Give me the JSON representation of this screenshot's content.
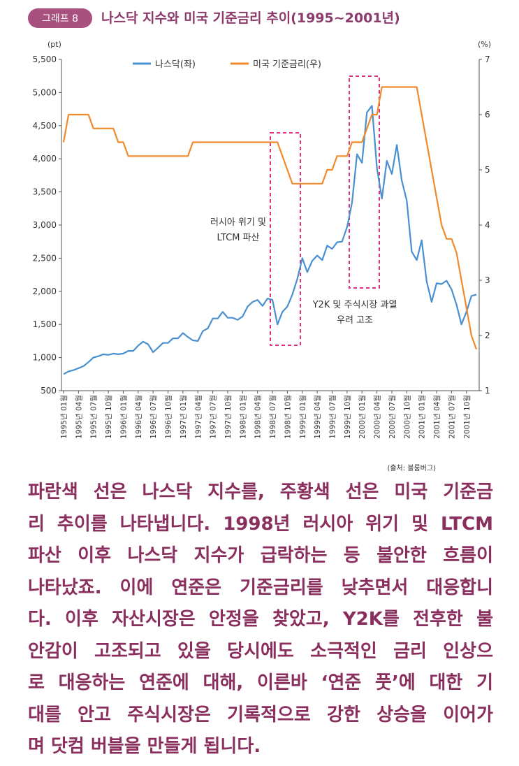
{
  "header": {
    "badge": "그래프 8",
    "title": "나스닥 지수와 미국 기준금리 추이(1995~2001년)"
  },
  "chart_data": {
    "type": "line",
    "y_unit": "(pt)",
    "y2_unit": "(%)",
    "categories": [
      "1995년 01월",
      null,
      null,
      "1995년 04월",
      null,
      null,
      "1995년 07월",
      null,
      null,
      "1995년 10월",
      null,
      null,
      "1996년 01월",
      null,
      null,
      "1996년 04월",
      null,
      null,
      "1996년 07월",
      null,
      null,
      "1996년 10월",
      null,
      null,
      "1997년 01월",
      null,
      null,
      "1997년 04월",
      null,
      null,
      "1997년 07월",
      null,
      null,
      "1997년 10월",
      null,
      null,
      "1998년 01월",
      null,
      null,
      "1998년 04월",
      null,
      null,
      "1998년 07월",
      null,
      null,
      "1998년 10월",
      null,
      null,
      "1999년 01월",
      null,
      null,
      "1999년 04월",
      null,
      null,
      "1999년 07월",
      null,
      null,
      "1999년 10월",
      null,
      null,
      "2000년 01월",
      null,
      null,
      "2000년 04월",
      null,
      null,
      "2000년 07월",
      null,
      null,
      "2000년 10월",
      null,
      null,
      "2001년 01월",
      null,
      null,
      "2001년 04월",
      null,
      null,
      "2001년 07월",
      null,
      null,
      "2001년 10월",
      null,
      null
    ],
    "series": [
      {
        "name": "나스닥(좌)",
        "color": "#4a90d0",
        "axis": "y",
        "values": [
          750,
          790,
          810,
          840,
          870,
          930,
          1000,
          1020,
          1050,
          1040,
          1060,
          1050,
          1060,
          1100,
          1100,
          1180,
          1240,
          1200,
          1080,
          1150,
          1220,
          1220,
          1290,
          1290,
          1370,
          1310,
          1260,
          1250,
          1400,
          1440,
          1590,
          1590,
          1690,
          1600,
          1600,
          1570,
          1620,
          1770,
          1840,
          1870,
          1780,
          1890,
          1870,
          1500,
          1690,
          1770,
          1950,
          2190,
          2500,
          2290,
          2460,
          2540,
          2470,
          2690,
          2640,
          2740,
          2750,
          2970,
          3340,
          4070,
          3940,
          4700,
          4800,
          3860,
          3400,
          3970,
          3770,
          4210,
          3670,
          3370,
          2600,
          2470,
          2770,
          2150,
          1840,
          2120,
          2110,
          2160,
          2030,
          1800,
          1500,
          1690,
          1930,
          1950
        ]
      },
      {
        "name": "미국 기준금리(우)",
        "color": "#f08a2c",
        "axis": "y2",
        "values": [
          5.5,
          6,
          6,
          6,
          6,
          6,
          5.75,
          5.75,
          5.75,
          5.75,
          5.75,
          5.5,
          5.5,
          5.25,
          5.25,
          5.25,
          5.25,
          5.25,
          5.25,
          5.25,
          5.25,
          5.25,
          5.25,
          5.25,
          5.25,
          5.25,
          5.5,
          5.5,
          5.5,
          5.5,
          5.5,
          5.5,
          5.5,
          5.5,
          5.5,
          5.5,
          5.5,
          5.5,
          5.5,
          5.5,
          5.5,
          5.5,
          5.5,
          5.5,
          5.25,
          5,
          4.75,
          4.75,
          4.75,
          4.75,
          4.75,
          4.75,
          4.75,
          5,
          5,
          5.25,
          5.25,
          5.25,
          5.5,
          5.5,
          5.5,
          5.75,
          6,
          6,
          6.5,
          6.5,
          6.5,
          6.5,
          6.5,
          6.5,
          6.5,
          6.5,
          6,
          5.5,
          5,
          4.5,
          4,
          3.75,
          3.75,
          3.5,
          3,
          2.5,
          2,
          1.75
        ]
      }
    ],
    "ylim": [
      500,
      5500
    ],
    "yticks": [
      500,
      {
        "value": 1000,
        "label": "1,000"
      },
      {
        "value": 1500,
        "label": "1,500"
      },
      {
        "value": 2000,
        "label": "2,000"
      },
      {
        "value": 2500,
        "label": "2,500"
      },
      {
        "value": 3000,
        "label": "3,000"
      },
      {
        "value": 3500,
        "label": "3,500"
      },
      {
        "value": 4000,
        "label": "4,000"
      },
      {
        "value": 4500,
        "label": "4,500"
      },
      {
        "value": 5000,
        "label": "5,000"
      },
      {
        "value": 5500,
        "label": "5,500"
      }
    ],
    "y2lim": [
      1,
      7
    ],
    "y2ticks": [
      1,
      2,
      3,
      4,
      5,
      6,
      7
    ],
    "annotations": [
      [
        "러시아 위기 및",
        "LTCM 파산"
      ],
      [
        "Y2K 및 주식시장 과열",
        "우려 고조"
      ]
    ],
    "source": "(출처: 블룸버그)"
  },
  "body": {
    "lines": [
      "파란색 선은 나스닥 지수를, 주황색 선은 미국 기준금",
      "리 추이를 나타냅니다. 1998년 러시아 위기 및 LTCM",
      "파산 이후 나스닥 지수가 급락하는 등 불안한 흐름이",
      "나타났죠. 이에 연준은 기준금리를 낮추면서 대응합니",
      "다. 이후 자산시장은 안정을 찾았고, Y2K를 전후한 불",
      "안감이 고조되고 있을 당시에도 소극적인 금리 인상으",
      "로 대응하는 연준에 대해, 이른바 ‘연준 풋’에 대한 기",
      "대를 안고 주식시장은 기록적으로 강한 상승을 이어가",
      "며 닷컴 버블을 만들게 됩니다."
    ]
  }
}
